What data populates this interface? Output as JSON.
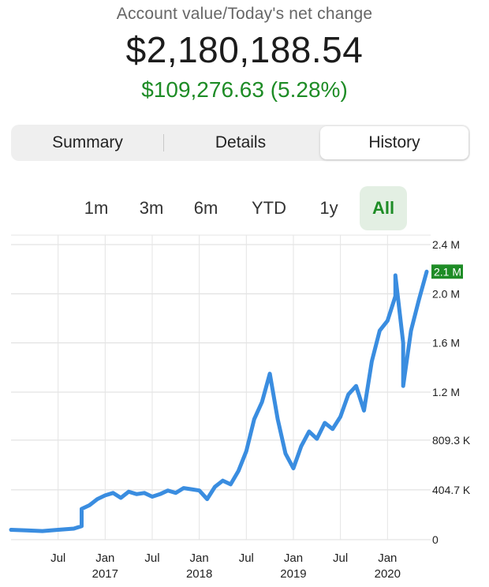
{
  "account": {
    "label": "Account value/Today's net change",
    "value": "$2,180,188.54",
    "change": "$109,276.63 (5.28%)"
  },
  "tabs": [
    {
      "label": "Summary",
      "selected": false
    },
    {
      "label": "Details",
      "selected": false
    },
    {
      "label": "History",
      "selected": true
    }
  ],
  "ranges": [
    {
      "label": "1m",
      "active": false
    },
    {
      "label": "3m",
      "active": false
    },
    {
      "label": "6m",
      "active": false
    },
    {
      "label": "YTD",
      "active": false
    },
    {
      "label": "1y",
      "active": false
    },
    {
      "label": "All",
      "active": true
    }
  ],
  "colors": {
    "line": "#3a8de0",
    "positive": "#1e8c26",
    "current_badge": "#1e8c26"
  },
  "chart_data": {
    "type": "line",
    "y_tick_labels": [
      "0",
      "404.7 K",
      "809.3 K",
      "1.2 M",
      "1.6 M",
      "2.0 M",
      "2.4 M"
    ],
    "y_tick_values": [
      0,
      404700,
      809300,
      1200000,
      1600000,
      2000000,
      2400000
    ],
    "ylim": [
      0,
      2400000
    ],
    "x_tick_labels": [
      {
        "month": "Jul",
        "year": ""
      },
      {
        "month": "Jan",
        "year": "2017"
      },
      {
        "month": "Jul",
        "year": ""
      },
      {
        "month": "Jan",
        "year": "2018"
      },
      {
        "month": "Jul",
        "year": ""
      },
      {
        "month": "Jan",
        "year": "2019"
      },
      {
        "month": "Jul",
        "year": ""
      },
      {
        "month": "Jan",
        "year": "2020"
      }
    ],
    "x_tick_dates": [
      "2016-07",
      "2017-01",
      "2017-07",
      "2018-01",
      "2018-07",
      "2019-01",
      "2019-07",
      "2020-01"
    ],
    "current_label": "2.1 M",
    "grid": true,
    "series": [
      {
        "points": [
          [
            "2016-01",
            80000
          ],
          [
            "2016-03",
            75000
          ],
          [
            "2016-05",
            70000
          ],
          [
            "2016-07",
            80000
          ],
          [
            "2016-09",
            90000
          ],
          [
            "2016-10",
            110000
          ],
          [
            "2016-10",
            250000
          ],
          [
            "2016-11",
            280000
          ],
          [
            "2016-12",
            330000
          ],
          [
            "2017-01",
            360000
          ],
          [
            "2017-02",
            380000
          ],
          [
            "2017-03",
            340000
          ],
          [
            "2017-04",
            390000
          ],
          [
            "2017-05",
            370000
          ],
          [
            "2017-06",
            380000
          ],
          [
            "2017-07",
            350000
          ],
          [
            "2017-08",
            370000
          ],
          [
            "2017-09",
            400000
          ],
          [
            "2017-10",
            380000
          ],
          [
            "2017-11",
            420000
          ],
          [
            "2017-12",
            410000
          ],
          [
            "2018-01",
            400000
          ],
          [
            "2018-02",
            330000
          ],
          [
            "2018-03",
            430000
          ],
          [
            "2018-04",
            480000
          ],
          [
            "2018-05",
            450000
          ],
          [
            "2018-06",
            560000
          ],
          [
            "2018-07",
            720000
          ],
          [
            "2018-08",
            980000
          ],
          [
            "2018-09",
            1120000
          ],
          [
            "2018-10",
            1350000
          ],
          [
            "2018-11",
            980000
          ],
          [
            "2018-12",
            700000
          ],
          [
            "2019-01",
            580000
          ],
          [
            "2019-02",
            760000
          ],
          [
            "2019-03",
            880000
          ],
          [
            "2019-04",
            820000
          ],
          [
            "2019-05",
            950000
          ],
          [
            "2019-06",
            900000
          ],
          [
            "2019-07",
            1000000
          ],
          [
            "2019-08",
            1180000
          ],
          [
            "2019-09",
            1250000
          ],
          [
            "2019-10",
            1050000
          ],
          [
            "2019-11",
            1450000
          ],
          [
            "2019-12",
            1700000
          ],
          [
            "2020-01",
            1780000
          ],
          [
            "2020-02",
            1980000
          ],
          [
            "2020-02",
            2150000
          ],
          [
            "2020-03",
            1600000
          ],
          [
            "2020-03",
            1250000
          ],
          [
            "2020-04",
            1700000
          ],
          [
            "2020-05",
            1950000
          ],
          [
            "2020-06",
            2180000
          ]
        ]
      }
    ]
  }
}
